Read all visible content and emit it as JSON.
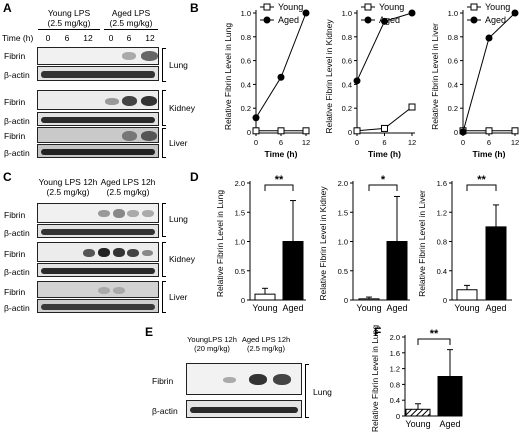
{
  "panels": {
    "A": {
      "label": "A",
      "groups": [
        "Young LPS",
        "Aged LPS"
      ],
      "dose": "(2.5 mg/kg)",
      "time_header": "Time (h)",
      "times": [
        "0",
        "6",
        "12",
        "0",
        "6",
        "12"
      ],
      "rows": [
        "Fibrin",
        "β-actin",
        "Fibrin",
        "β-actin",
        "Fibrin",
        "β-actin"
      ],
      "tissues": [
        "Lung",
        "Kidney",
        "Liver"
      ]
    },
    "B": {
      "label": "B"
    },
    "C": {
      "label": "C",
      "groups": [
        "Young LPS 12h",
        "Aged LPS 12h"
      ],
      "dose": "(2.5 mg/kg)",
      "rows": [
        "Fibrin",
        "β-actin",
        "Fibrin",
        "β-actin",
        "Fibrin",
        "β-actin"
      ],
      "tissues": [
        "Lung",
        "Kidney",
        "Liver"
      ]
    },
    "D": {
      "label": "D"
    },
    "E": {
      "label": "E",
      "group1": "YoungLPS 12h",
      "dose1": "(20 mg/kg)",
      "group2": "Aged LPS 12h",
      "dose2": "(2.5 mg/kg)",
      "rows": [
        "Fibrin",
        "β-actin"
      ],
      "tissue": "Lung"
    },
    "F": {
      "label": "F"
    }
  },
  "chart_data": [
    {
      "id": "B1",
      "type": "line",
      "x": [
        0,
        6,
        12
      ],
      "xticks": [
        "0",
        "6",
        "12"
      ],
      "ylim": [
        0,
        1.0
      ],
      "yticks": [
        "0",
        "0.2",
        "0.4",
        "0.6",
        "0.8",
        "1.0"
      ],
      "xlabel": "Time (h)",
      "ylabel": "Relative Fibrin Level in Lung",
      "legend": "top-left",
      "series": [
        {
          "name": "Young",
          "marker": "open-square",
          "values": [
            0.01,
            0.01,
            0.01
          ]
        },
        {
          "name": "Aged",
          "marker": "filled-circle",
          "values": [
            0.12,
            0.46,
            1.0
          ]
        }
      ]
    },
    {
      "id": "B2",
      "type": "line",
      "x": [
        0,
        6,
        12
      ],
      "xticks": [
        "0",
        "6",
        "12"
      ],
      "ylim": [
        0,
        1.0
      ],
      "yticks": [
        "0",
        "0.2",
        "0.4",
        "0.6",
        "0.8",
        "1.0"
      ],
      "xlabel": "Time (h)",
      "ylabel": "Relative Fibrin Level in Kidney",
      "legend": "top-left",
      "series": [
        {
          "name": "Young",
          "marker": "open-square",
          "values": [
            0.01,
            0.03,
            0.21
          ]
        },
        {
          "name": "Aged",
          "marker": "filled-circle",
          "values": [
            0.43,
            0.93,
            1.0
          ]
        }
      ]
    },
    {
      "id": "B3",
      "type": "line",
      "x": [
        0,
        6,
        12
      ],
      "xticks": [
        "0",
        "6",
        "12"
      ],
      "ylim": [
        0,
        1.0
      ],
      "yticks": [
        "0",
        "0.2",
        "0.4",
        "0.6",
        "0.8",
        "1.0"
      ],
      "xlabel": "Time (h)",
      "ylabel": "Relative Fibrin Level in Liver",
      "legend": "top-left",
      "series": [
        {
          "name": "Young",
          "marker": "open-square",
          "values": [
            0.01,
            0.01,
            0.01
          ]
        },
        {
          "name": "Aged",
          "marker": "filled-circle",
          "values": [
            0.0,
            0.79,
            1.0
          ]
        }
      ]
    },
    {
      "id": "D1",
      "type": "bar",
      "categories": [
        "Young",
        "Aged"
      ],
      "values": [
        0.1,
        1.0
      ],
      "errors": [
        0.1,
        0.7
      ],
      "ylim": [
        0,
        2.0
      ],
      "yticks": [
        "0",
        "0.5",
        "1.0",
        "1.5",
        "2.0"
      ],
      "ylabel": "Relative Fibrin Level in Lung",
      "significance": "**"
    },
    {
      "id": "D2",
      "type": "bar",
      "categories": [
        "Young",
        "Aged"
      ],
      "values": [
        0.02,
        1.0
      ],
      "errors": [
        0.03,
        0.77
      ],
      "ylim": [
        0,
        2.0
      ],
      "yticks": [
        "0",
        "0.5",
        "1.0",
        "1.5",
        "2.0"
      ],
      "ylabel": "Relative Fibrin Level in Kidney",
      "significance": "*"
    },
    {
      "id": "D3",
      "type": "bar",
      "categories": [
        "Young",
        "Aged"
      ],
      "values": [
        0.14,
        1.0
      ],
      "errors": [
        0.06,
        0.3
      ],
      "ylim": [
        0,
        1.6
      ],
      "yticks": [
        "0",
        "0.4",
        "0.8",
        "1.2",
        "1.6"
      ],
      "ylabel": "Relative Fibrin Level in Liver",
      "significance": "**"
    },
    {
      "id": "F",
      "type": "bar",
      "categories": [
        "Young",
        "Aged"
      ],
      "values": [
        0.17,
        1.0
      ],
      "errors": [
        0.14,
        0.68
      ],
      "hatched": [
        true,
        false
      ],
      "ylim": [
        0,
        2.0
      ],
      "yticks": [
        "0",
        "0.4",
        "0.8",
        "1.2",
        "1.6",
        "2.0"
      ],
      "ylabel": "Relative Fibrin Level in Lung",
      "significance": "**"
    }
  ]
}
